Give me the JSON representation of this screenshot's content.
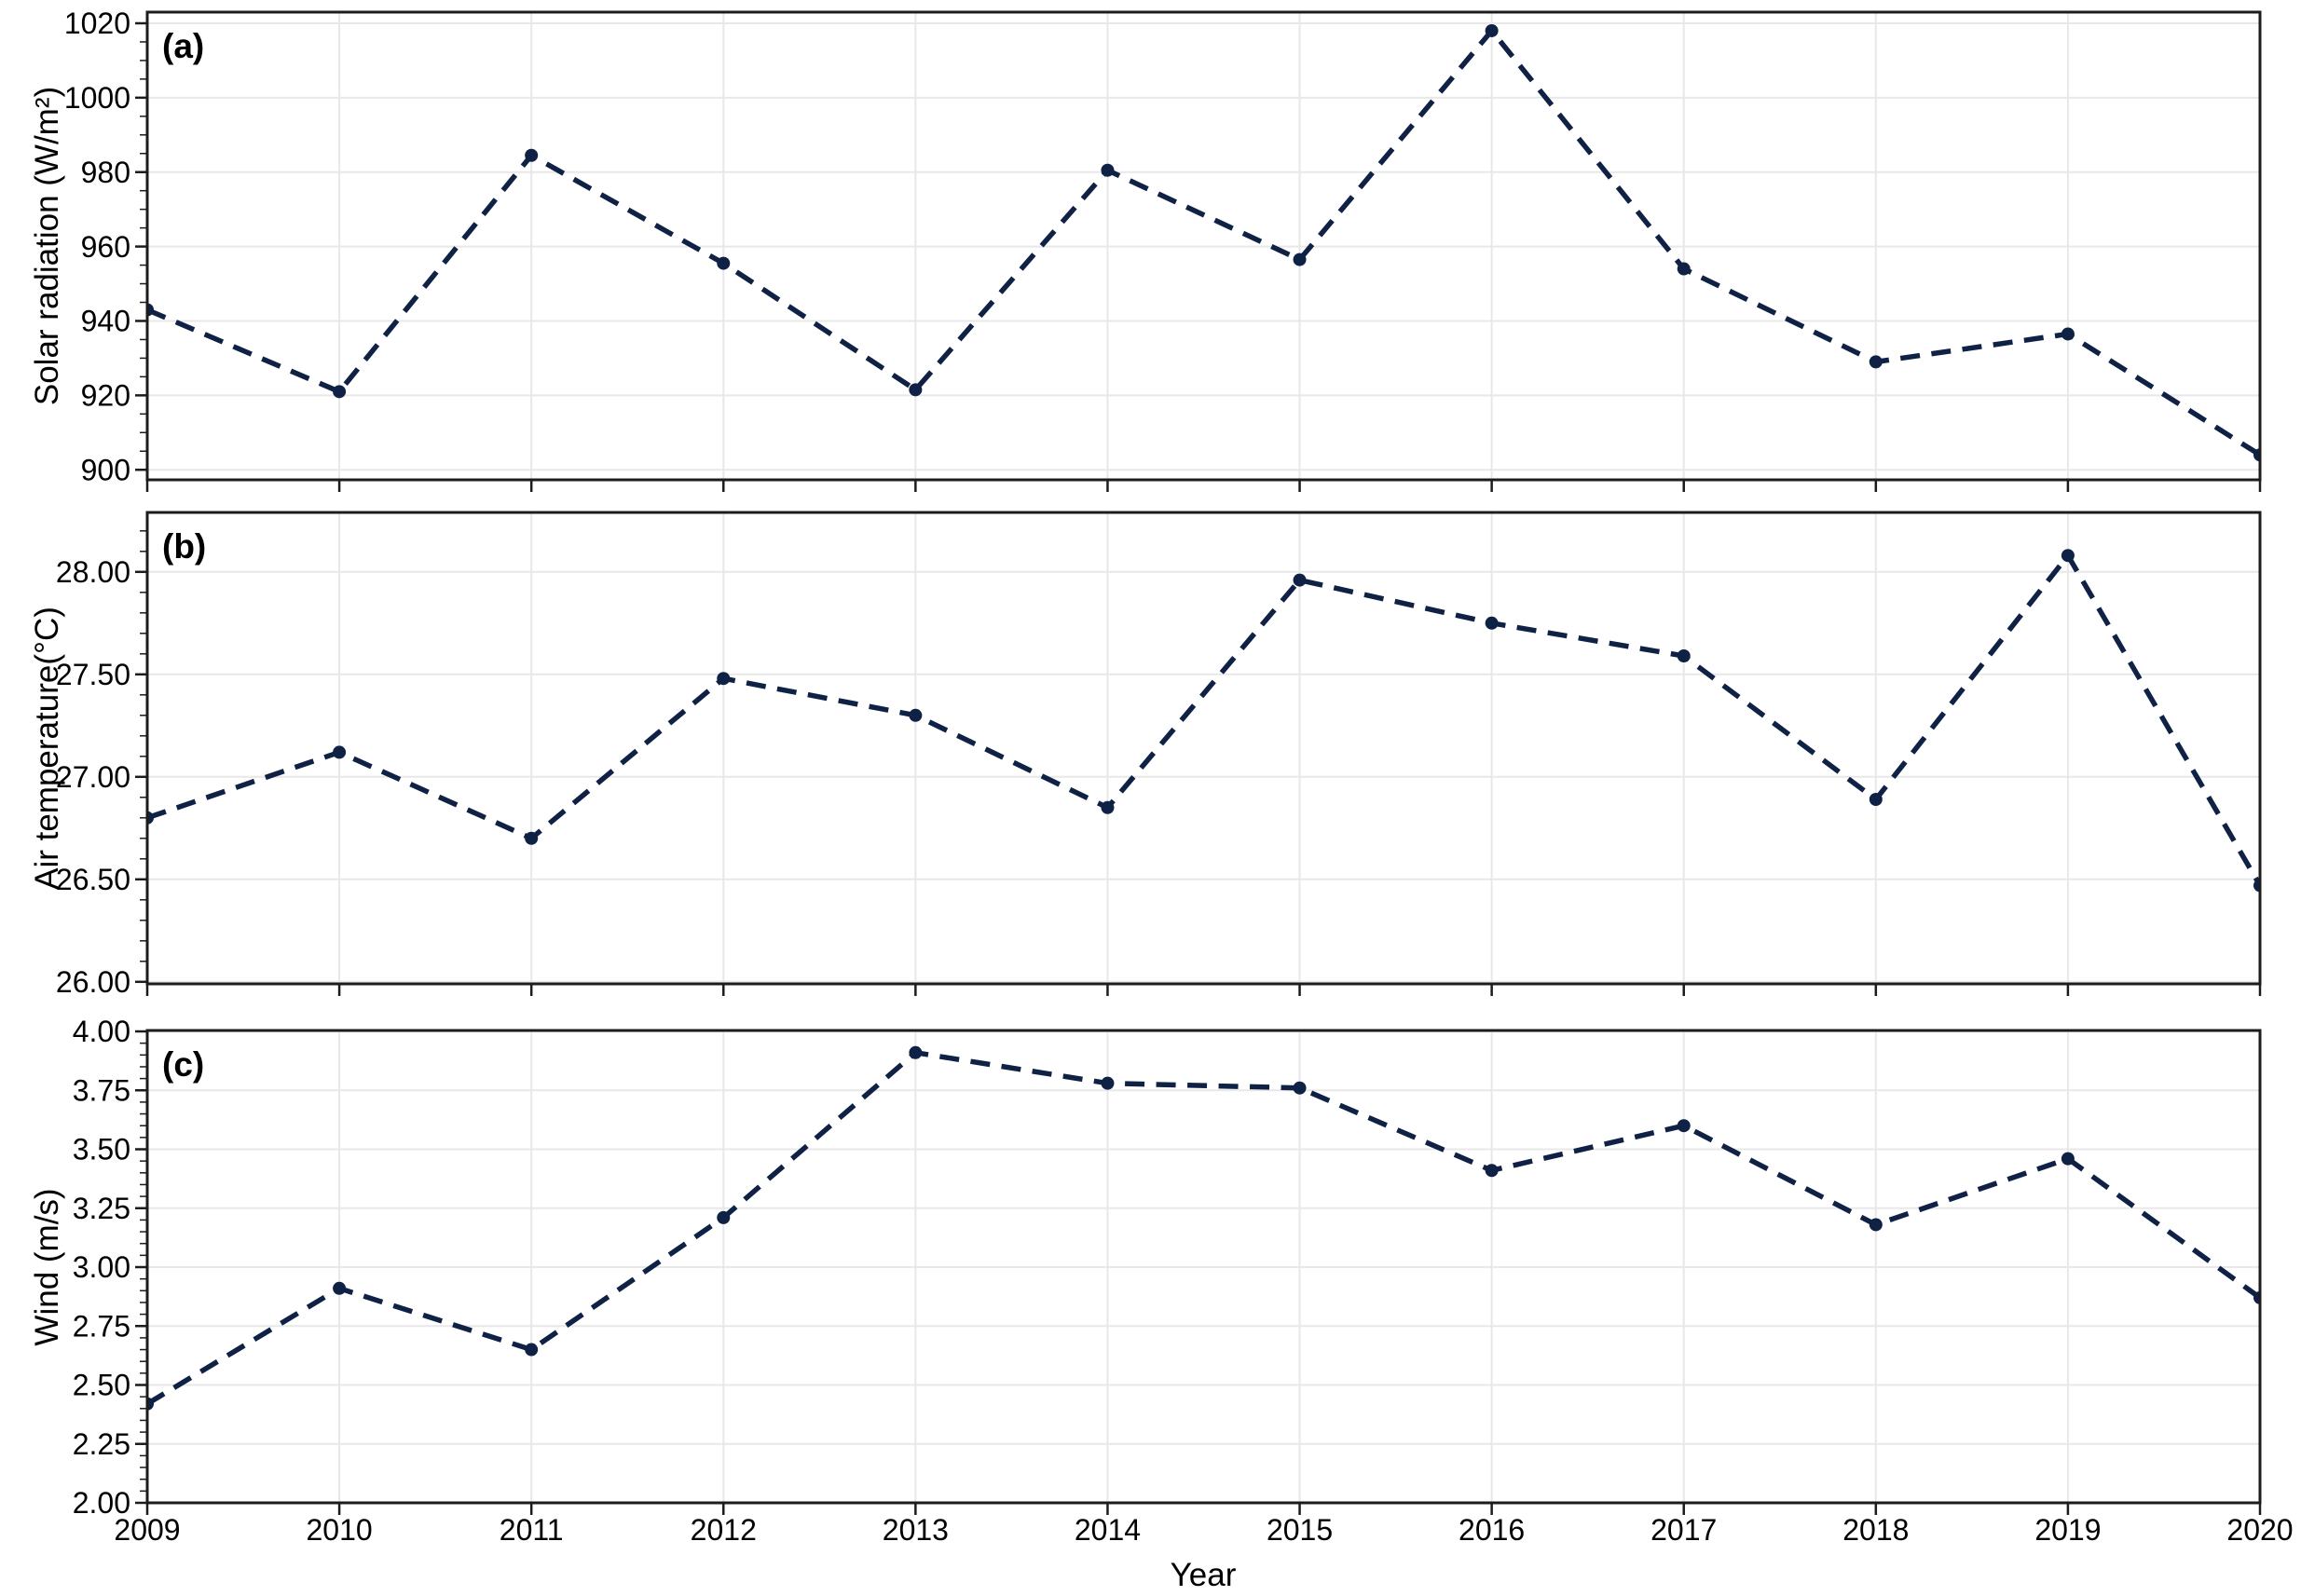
{
  "figure": {
    "xlabel": "Year",
    "x_tick_labels": [
      "2009",
      "2010",
      "2011",
      "2012",
      "2013",
      "2014",
      "2015",
      "2016",
      "2017",
      "2018",
      "2019",
      "2020"
    ],
    "line_color": "#0f2145",
    "grid_color": "#e8e8e8",
    "axis_color": "#1c1c1c",
    "background": "#ffffff"
  },
  "chart_data": [
    {
      "type": "line",
      "panel": "(a)",
      "ylabel": "Solar radiation (W/m²)",
      "xlabel": "Year",
      "x": [
        2009,
        2010,
        2011,
        2012,
        2013,
        2014,
        2015,
        2016,
        2017,
        2018,
        2019,
        2020
      ],
      "values": [
        943,
        921,
        984.5,
        955.5,
        921.5,
        980.5,
        956.5,
        1018,
        954,
        929,
        936.5,
        904
      ],
      "ylim": [
        897.3,
        1023.0
      ],
      "yticks": [
        900,
        920,
        940,
        960,
        980,
        1000,
        1020
      ],
      "ytick_labels": [
        "900",
        "920",
        "940",
        "960",
        "980",
        "1000",
        "1020"
      ],
      "minor_tick_step": 5,
      "line_style": "dashed",
      "marker": "circle",
      "grid": "on",
      "legend": "none"
    },
    {
      "type": "line",
      "panel": "(b)",
      "ylabel": "Air temperature(°C)",
      "xlabel": "Year",
      "x": [
        2009,
        2010,
        2011,
        2012,
        2013,
        2014,
        2015,
        2016,
        2017,
        2018,
        2019,
        2020
      ],
      "values": [
        26.8,
        27.12,
        26.7,
        27.48,
        27.3,
        26.85,
        27.96,
        27.75,
        27.59,
        26.89,
        28.08,
        26.47
      ],
      "ylim": [
        25.99,
        28.29
      ],
      "yticks": [
        26.0,
        26.5,
        27.0,
        27.5,
        28.0
      ],
      "ytick_labels": [
        "26.00",
        "26.50",
        "27.00",
        "27.50",
        "28.00"
      ],
      "minor_tick_step": 0.1,
      "line_style": "dashed",
      "marker": "circle",
      "grid": "on",
      "legend": "none"
    },
    {
      "type": "line",
      "panel": "(c)",
      "ylabel": "Wind (m/s)",
      "xlabel": "Year",
      "x": [
        2009,
        2010,
        2011,
        2012,
        2013,
        2014,
        2015,
        2016,
        2017,
        2018,
        2019,
        2020
      ],
      "values": [
        2.42,
        2.91,
        2.65,
        3.21,
        3.91,
        3.78,
        3.76,
        3.41,
        3.6,
        3.18,
        3.46,
        2.87
      ],
      "ylim": [
        2.0,
        4.004
      ],
      "yticks": [
        2.0,
        2.25,
        2.5,
        2.75,
        3.0,
        3.25,
        3.5,
        3.75,
        4.0
      ],
      "ytick_labels": [
        "2.00",
        "2.25",
        "2.50",
        "2.75",
        "3.00",
        "3.25",
        "3.50",
        "3.75",
        "4.00"
      ],
      "minor_tick_step": 0.05,
      "line_style": "dashed",
      "marker": "circle",
      "grid": "on",
      "legend": "none"
    }
  ]
}
